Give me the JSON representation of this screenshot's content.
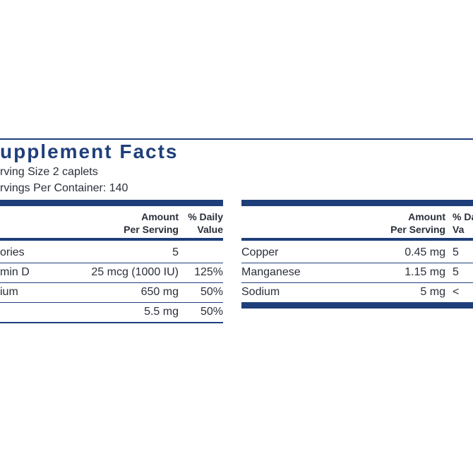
{
  "header": {
    "title": "upplement Facts",
    "serving_size": "rving Size 2 caplets",
    "servings_per_container": "rvings Per Container: 140"
  },
  "left_table": {
    "amount_header": [
      "Amount",
      "Per Serving"
    ],
    "dv_header": [
      "% Daily",
      "Value"
    ],
    "rows": [
      {
        "name": "ories",
        "amount": "5"
      },
      {
        "name": "min D",
        "amount": "25 mcg (1000 IU)",
        "dv": "125%"
      },
      {
        "name": "ium",
        "amount": "650 mg",
        "dv": "50%"
      },
      {
        "amount": "5.5 mg",
        "dv": "50%"
      }
    ]
  },
  "right_table": {
    "amount_header": [
      "Amount",
      "Per Serving"
    ],
    "dv_header": [
      "% Da",
      "Va"
    ],
    "rows": [
      {
        "name": "Copper",
        "amount": "0.45 mg",
        "dv": "5"
      },
      {
        "name": "Manganese",
        "amount": "1.15 mg",
        "dv": "5"
      },
      {
        "name": "Sodium",
        "amount": "5 mg",
        "dv": "<"
      }
    ]
  }
}
